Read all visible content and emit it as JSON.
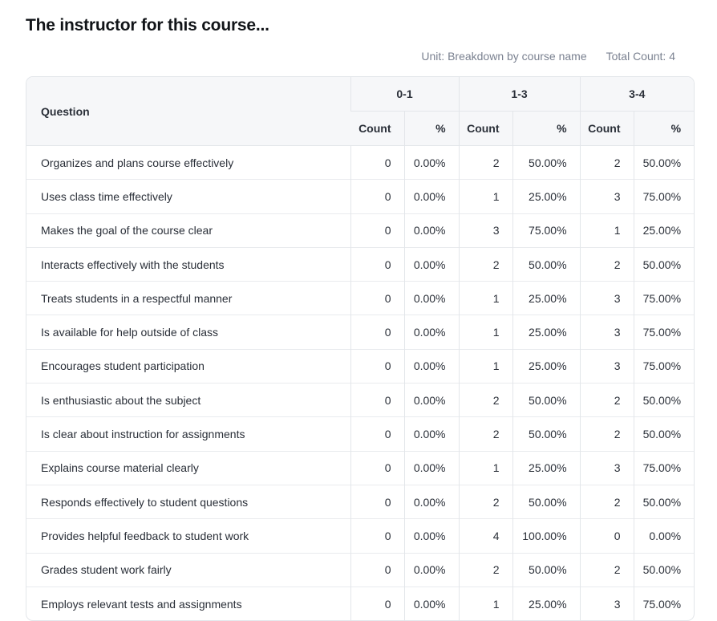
{
  "title": "The instructor for this course...",
  "meta": {
    "unit": "Unit: Breakdown by course name",
    "total": "Total Count: 4"
  },
  "table": {
    "question_header": "Question",
    "groups": [
      "0-1",
      "1-3",
      "3-4"
    ],
    "sub_headers": [
      "Count",
      "%",
      "Count",
      "%",
      "Count",
      "%"
    ],
    "rows": [
      {
        "q": "Organizes and plans course effectively",
        "v": [
          "0",
          "0.00%",
          "2",
          "50.00%",
          "2",
          "50.00%"
        ]
      },
      {
        "q": "Uses class time effectively",
        "v": [
          "0",
          "0.00%",
          "1",
          "25.00%",
          "3",
          "75.00%"
        ]
      },
      {
        "q": "Makes the goal of the course clear",
        "v": [
          "0",
          "0.00%",
          "3",
          "75.00%",
          "1",
          "25.00%"
        ]
      },
      {
        "q": "Interacts effectively with the students",
        "v": [
          "0",
          "0.00%",
          "2",
          "50.00%",
          "2",
          "50.00%"
        ]
      },
      {
        "q": "Treats students in a respectful manner",
        "v": [
          "0",
          "0.00%",
          "1",
          "25.00%",
          "3",
          "75.00%"
        ]
      },
      {
        "q": "Is available for help outside of class",
        "v": [
          "0",
          "0.00%",
          "1",
          "25.00%",
          "3",
          "75.00%"
        ]
      },
      {
        "q": "Encourages student participation",
        "v": [
          "0",
          "0.00%",
          "1",
          "25.00%",
          "3",
          "75.00%"
        ]
      },
      {
        "q": "Is enthusiastic about the subject",
        "v": [
          "0",
          "0.00%",
          "2",
          "50.00%",
          "2",
          "50.00%"
        ]
      },
      {
        "q": "Is clear about instruction for assignments",
        "v": [
          "0",
          "0.00%",
          "2",
          "50.00%",
          "2",
          "50.00%"
        ]
      },
      {
        "q": "Explains course material clearly",
        "v": [
          "0",
          "0.00%",
          "1",
          "25.00%",
          "3",
          "75.00%"
        ]
      },
      {
        "q": "Responds effectively to student questions",
        "v": [
          "0",
          "0.00%",
          "2",
          "50.00%",
          "2",
          "50.00%"
        ]
      },
      {
        "q": "Provides helpful feedback to student work",
        "v": [
          "0",
          "0.00%",
          "4",
          "100.00%",
          "0",
          "0.00%"
        ]
      },
      {
        "q": "Grades student work fairly",
        "v": [
          "0",
          "0.00%",
          "2",
          "50.00%",
          "2",
          "50.00%"
        ]
      },
      {
        "q": "Employs relevant tests and assignments",
        "v": [
          "0",
          "0.00%",
          "1",
          "25.00%",
          "3",
          "75.00%"
        ]
      }
    ]
  }
}
